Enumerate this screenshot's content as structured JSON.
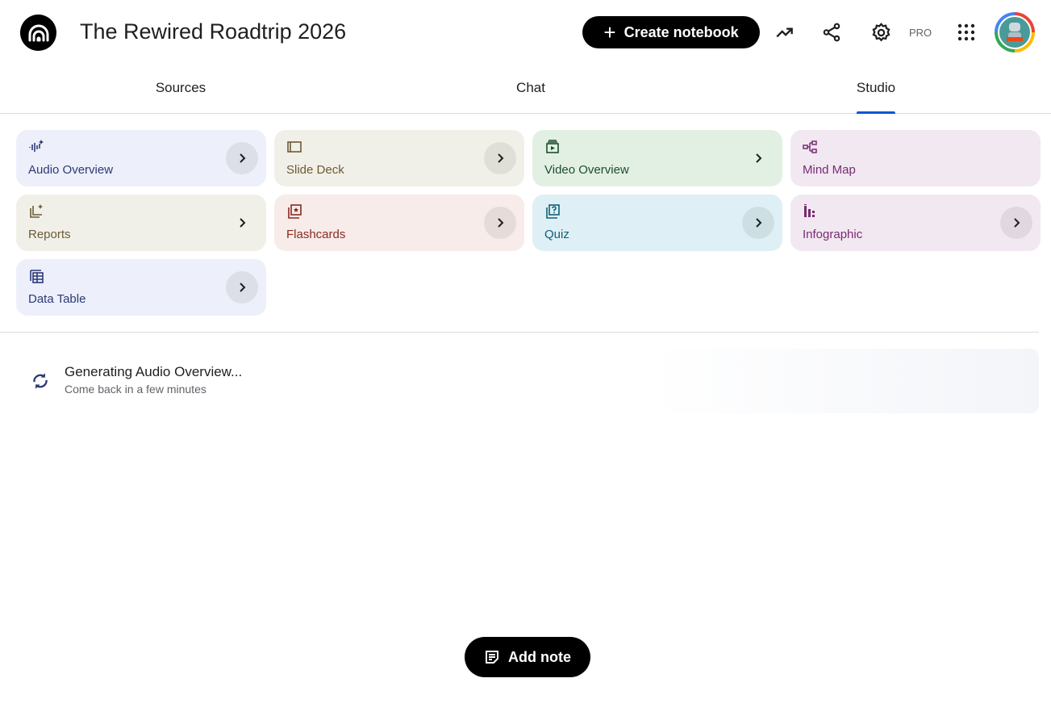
{
  "header": {
    "title": "The Rewired Roadtrip 2026",
    "create_label": "Create notebook",
    "plan_badge": "PRO"
  },
  "tabs": [
    {
      "label": "Sources"
    },
    {
      "label": "Chat"
    },
    {
      "label": "Studio",
      "active": true
    }
  ],
  "studio_tools": [
    {
      "label": "Audio Overview",
      "icon": "audio-waveform-icon",
      "bg": "#edeffa",
      "color": "#2b3a78",
      "chevron": true
    },
    {
      "label": "Slide Deck",
      "icon": "slides-icon",
      "bg": "#f1f0e8",
      "color": "#6b5a35",
      "chevron": true
    },
    {
      "label": "Video Overview",
      "icon": "video-icon",
      "bg": "#e2f0e4",
      "color": "#1e4d2b",
      "chevron": false
    },
    {
      "label": "Mind Map",
      "icon": "mind-map-icon",
      "bg": "#f1e8f1",
      "color": "#7a2a74",
      "chevron": null
    },
    {
      "label": "Reports",
      "icon": "reports-icon",
      "bg": "#f1f0e8",
      "color": "#6b5a35",
      "chevron": false
    },
    {
      "label": "Flashcards",
      "icon": "flashcards-icon",
      "bg": "#f7ece9",
      "color": "#8a2a22",
      "chevron": true
    },
    {
      "label": "Quiz",
      "icon": "quiz-icon",
      "bg": "#def0f5",
      "color": "#115e78",
      "chevron": true
    },
    {
      "label": "Infographic",
      "icon": "infographic-icon",
      "bg": "#f1e8f1",
      "color": "#7a2a74",
      "chevron": true
    },
    {
      "label": "Data Table",
      "icon": "data-table-icon",
      "bg": "#edeffa",
      "color": "#2b3a78",
      "chevron": true
    }
  ],
  "generating": {
    "title": "Generating Audio Overview...",
    "subtitle": "Come back in a few minutes"
  },
  "add_note_label": "Add note"
}
